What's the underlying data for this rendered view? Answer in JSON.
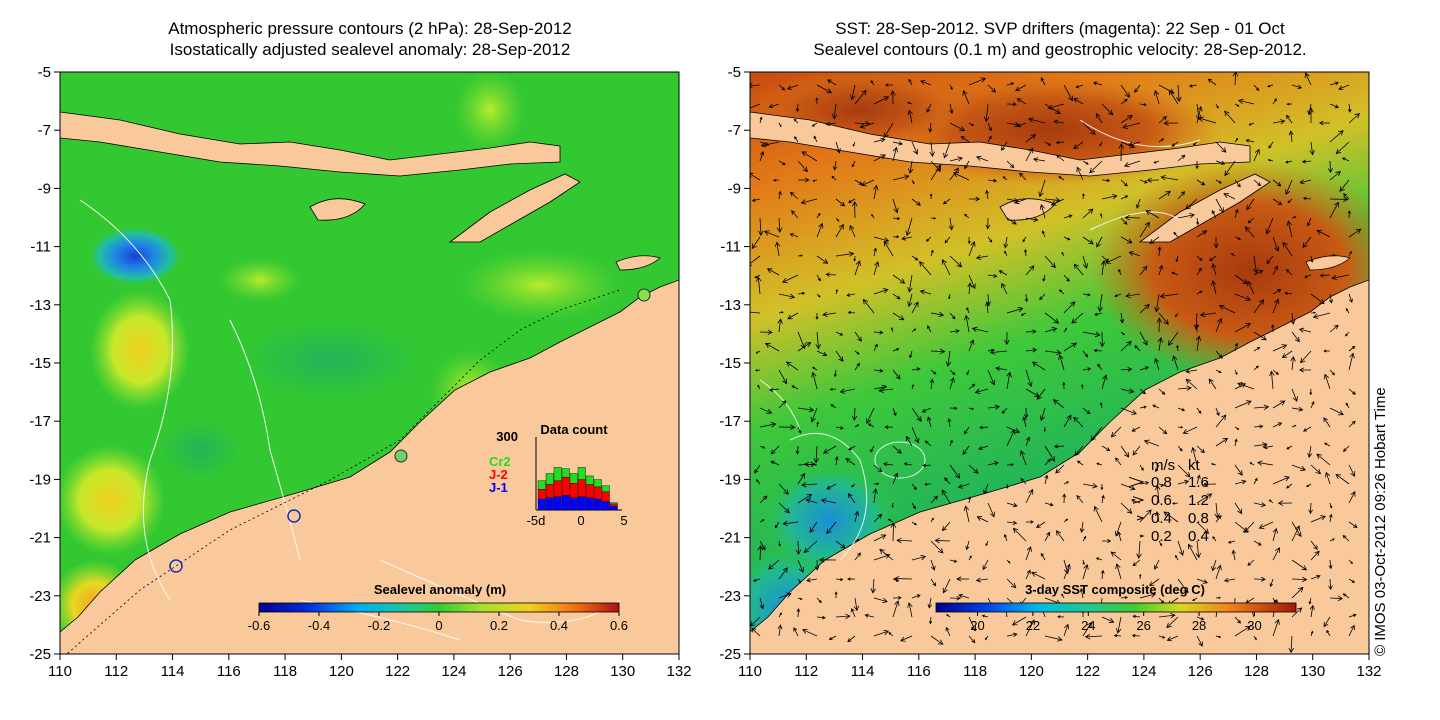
{
  "left_panel": {
    "title_line1": "Atmospheric pressure contours (2 hPa): 28-Sep-2012",
    "title_line2": "Isostatically adjusted sealevel anomaly: 28-Sep-2012",
    "colorbar_label": "Sealevel anomaly (m)",
    "colorbar_ticks": [
      "-0.6",
      "-0.4",
      "-0.2",
      "0",
      "0.2",
      "0.4",
      "0.6"
    ],
    "colorbar_range": [
      -0.6,
      0.6
    ],
    "inset": {
      "title": "Data count",
      "ymax_label": "300",
      "legend": [
        {
          "label": "Cr2",
          "color": "#22dd22"
        },
        {
          "label": "J-2",
          "color": "#ff0000"
        },
        {
          "label": "J-1",
          "color": "#0000ff"
        }
      ],
      "x_ticks": [
        "-5d",
        "0",
        "5"
      ],
      "days": [
        -5,
        -4,
        -3,
        -2,
        -1,
        0,
        1,
        2,
        3,
        4
      ],
      "series": [
        {
          "name": "J-1",
          "values": [
            45,
            50,
            55,
            60,
            50,
            55,
            50,
            45,
            35,
            15
          ]
        },
        {
          "name": "J-2",
          "values": [
            40,
            55,
            65,
            75,
            60,
            70,
            55,
            50,
            40,
            10
          ]
        },
        {
          "name": "Cr2",
          "values": [
            35,
            45,
            55,
            35,
            40,
            50,
            35,
            30,
            25,
            5
          ]
        }
      ],
      "ymax": 300
    }
  },
  "right_panel": {
    "title_line1": "SST: 28-Sep-2012. SVP drifters (magenta): 22 Sep - 01 Oct",
    "title_line2": "Sealevel contours (0.1 m) and geostrophic velocity: 28-Sep-2012.",
    "colorbar_label": "3-day SST composite (deg C)",
    "colorbar_ticks": [
      "20",
      "22",
      "24",
      "26",
      "28",
      "30"
    ],
    "colorbar_range": [
      18.5,
      31.5
    ],
    "speed_legend": {
      "header_ms": "m/s",
      "header_kt": "kt",
      "rows": [
        {
          "ms": "0.8",
          "kt": "1.6"
        },
        {
          "ms": "0.6",
          "kt": "1.2"
        },
        {
          "ms": "0.4",
          "kt": "0.8"
        },
        {
          "ms": "0.2",
          "kt": "0.4"
        }
      ]
    }
  },
  "axes": {
    "lon_ticks": [
      "110",
      "112",
      "114",
      "116",
      "118",
      "120",
      "122",
      "124",
      "126",
      "128",
      "130",
      "132"
    ],
    "lat_ticks": [
      "-5",
      "-7",
      "-9",
      "-11",
      "-13",
      "-15",
      "-17",
      "-19",
      "-21",
      "-23",
      "-25"
    ],
    "lon_range": [
      110,
      132
    ],
    "lat_range": [
      -25,
      -5
    ]
  },
  "credit": "© IMOS 03-Oct-2012 09:26 Hobart Time",
  "colors": {
    "land": "#f9c99c",
    "anomaly_base": "#33cc33",
    "sst_warm": "#c85a14",
    "sst_cool": "#2ec82e"
  }
}
